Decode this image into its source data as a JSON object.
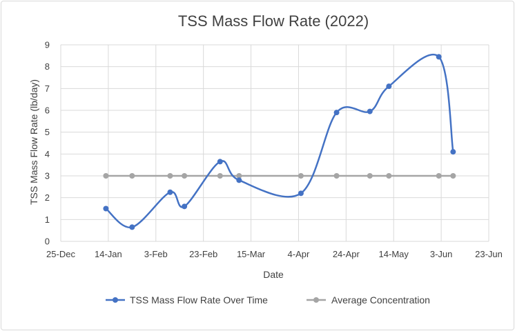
{
  "chart_data": {
    "type": "line",
    "title": "TSS Mass Flow Rate (2022)",
    "xlabel": "Date",
    "ylabel": "TSS Mass Flow Rate (lb/day)",
    "ylim": [
      0,
      9
    ],
    "y_ticks": [
      "0",
      "1",
      "2",
      "3",
      "4",
      "5",
      "6",
      "7",
      "8",
      "9"
    ],
    "x_tick_labels": [
      "25-Dec",
      "14-Jan",
      "3-Feb",
      "23-Feb",
      "15-Mar",
      "4-Apr",
      "24-Apr",
      "14-May",
      "3-Jun",
      "23-Jun"
    ],
    "grid": true,
    "legend_position": "bottom",
    "series": [
      {
        "name": "TSS Mass Flow Rate Over Time",
        "color": "#4472C4",
        "smooth": true,
        "x": [
          "2022-01-13",
          "2022-01-24",
          "2022-02-09",
          "2022-02-15",
          "2022-03-02",
          "2022-03-10",
          "2022-04-05",
          "2022-04-20",
          "2022-05-04",
          "2022-05-12",
          "2022-06-02",
          "2022-06-08"
        ],
        "values": [
          1.5,
          0.65,
          2.25,
          1.6,
          3.65,
          2.8,
          2.2,
          5.9,
          5.95,
          7.1,
          8.45,
          4.1
        ]
      },
      {
        "name": "Average Concentration",
        "color": "#A5A5A5",
        "smooth": false,
        "x": [
          "2022-01-13",
          "2022-01-24",
          "2022-02-09",
          "2022-02-15",
          "2022-03-02",
          "2022-03-10",
          "2022-04-05",
          "2022-04-20",
          "2022-05-04",
          "2022-05-12",
          "2022-06-02",
          "2022-06-08"
        ],
        "values": [
          3,
          3,
          3,
          3,
          3,
          3,
          3,
          3,
          3,
          3,
          3,
          3
        ]
      }
    ]
  }
}
